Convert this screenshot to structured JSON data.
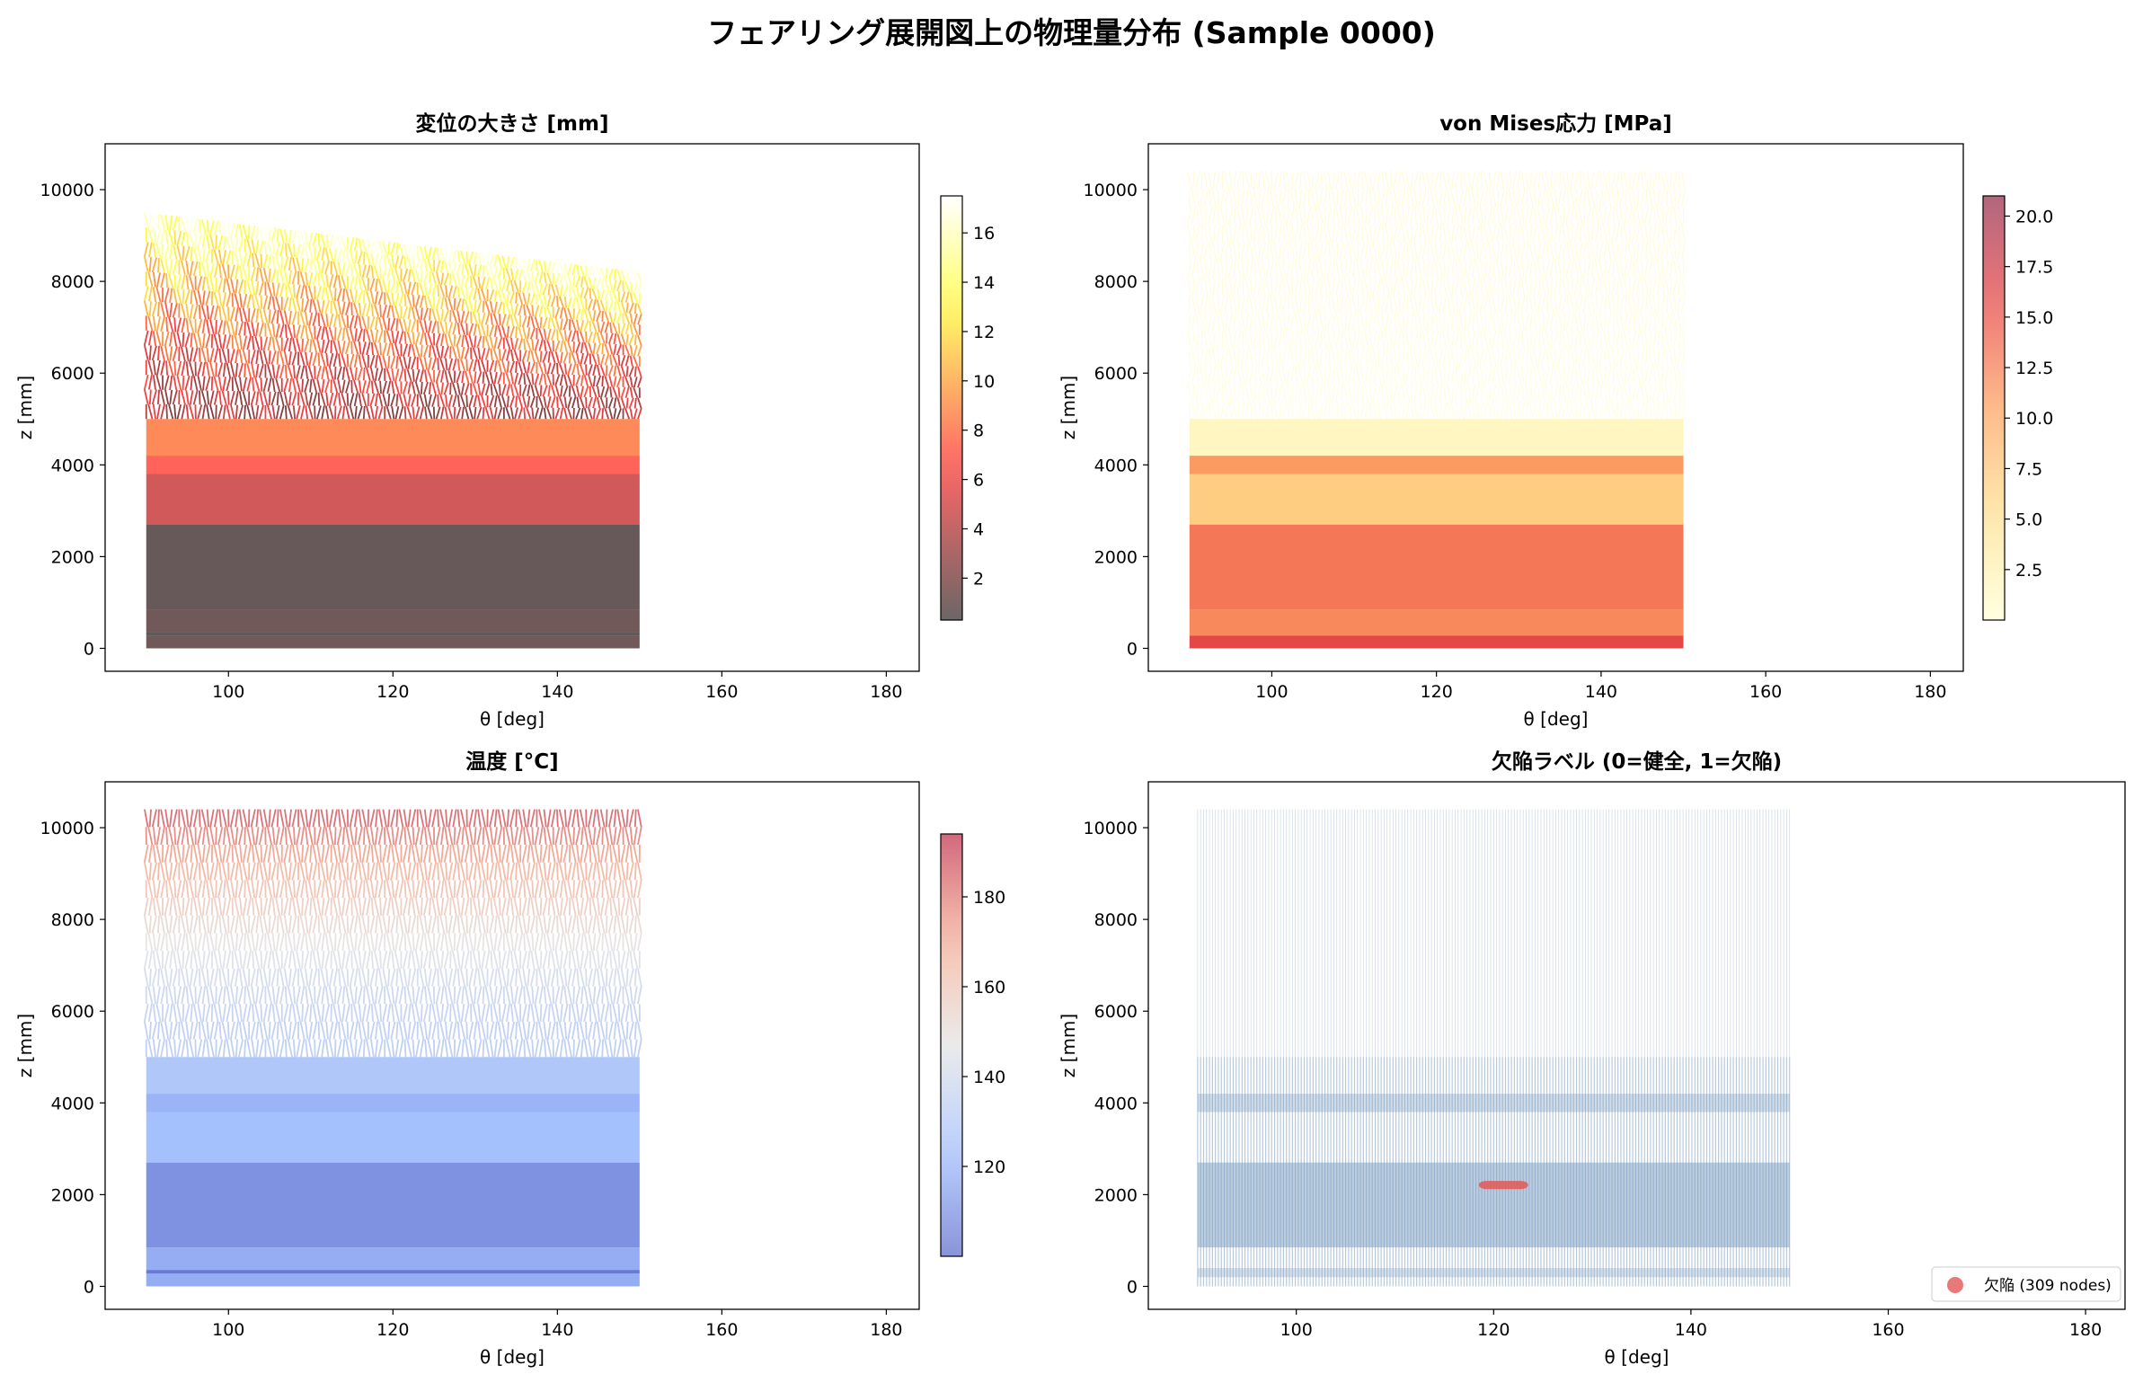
{
  "suptitle": "フェアリング展開図上の物理量分布 (Sample 0000)",
  "chart_data": [
    {
      "type": "scatter",
      "title": "変位の大きさ [mm]",
      "xlabel": "θ [deg]",
      "ylabel": "z [mm]",
      "xlim": [
        85,
        184
      ],
      "ylim": [
        -500,
        11000
      ],
      "xticks": [
        100,
        120,
        140,
        160,
        180
      ],
      "yticks": [
        0,
        2000,
        4000,
        6000,
        8000,
        10000
      ],
      "theta_range": [
        90,
        150
      ],
      "colormap": "hot",
      "colorbar": {
        "ticks": [
          "2",
          "4",
          "6",
          "8",
          "10",
          "12",
          "14",
          "16"
        ],
        "range": [
          0.3,
          17.5
        ]
      },
      "bands": [
        {
          "z": [
            0,
            280
          ],
          "value": 1.0
        },
        {
          "z": [
            280,
            360
          ],
          "value": 0.2
        },
        {
          "z": [
            360,
            850
          ],
          "value": 1.0
        },
        {
          "z": [
            850,
            2700
          ],
          "value": 0.6
        },
        {
          "z": [
            2700,
            3800
          ],
          "value": 4.8
        },
        {
          "z": [
            3800,
            4200
          ],
          "value": 7.0
        },
        {
          "z": [
            4200,
            5000
          ],
          "value": 8.5
        }
      ],
      "upper_region": {
        "z": [
          5000,
          9500
        ],
        "value_low": 4,
        "value_high": 16
      }
    },
    {
      "type": "scatter",
      "title": "von Mises応力 [MPa]",
      "xlabel": "θ [deg]",
      "ylabel": "z [mm]",
      "xlim": [
        85,
        184
      ],
      "ylim": [
        -500,
        11000
      ],
      "xticks": [
        100,
        120,
        140,
        160,
        180
      ],
      "yticks": [
        0,
        2000,
        4000,
        6000,
        8000,
        10000
      ],
      "theta_range": [
        90,
        150
      ],
      "colormap": "YlOrRd",
      "colorbar": {
        "ticks": [
          "2.5",
          "5.0",
          "7.5",
          "10.0",
          "12.5",
          "15.0",
          "17.5",
          "20.0"
        ],
        "range": [
          0,
          21
        ]
      },
      "bands": [
        {
          "z": [
            0,
            280
          ],
          "value": 16
        },
        {
          "z": [
            280,
            850
          ],
          "value": 12
        },
        {
          "z": [
            850,
            2700
          ],
          "value": 13
        },
        {
          "z": [
            2700,
            3800
          ],
          "value": 7
        },
        {
          "z": [
            3800,
            4200
          ],
          "value": 11
        },
        {
          "z": [
            4200,
            5000
          ],
          "value": 1.5
        }
      ],
      "upper_region": {
        "z": [
          5000,
          10400
        ],
        "value_low": 0.3,
        "value_high": 1.2
      }
    },
    {
      "type": "scatter",
      "title": "温度 [°C]",
      "xlabel": "θ [deg]",
      "ylabel": "z [mm]",
      "xlim": [
        85,
        184
      ],
      "ylim": [
        -500,
        11000
      ],
      "xticks": [
        100,
        120,
        140,
        160,
        180
      ],
      "yticks": [
        0,
        2000,
        4000,
        6000,
        8000,
        10000
      ],
      "theta_range": [
        90,
        150
      ],
      "colormap": "coolwarm",
      "colorbar": {
        "ticks": [
          "120",
          "140",
          "160",
          "180"
        ],
        "range": [
          100,
          194
        ]
      },
      "bands": [
        {
          "z": [
            0,
            280
          ],
          "value": 118
        },
        {
          "z": [
            280,
            360
          ],
          "value": 103
        },
        {
          "z": [
            360,
            850
          ],
          "value": 118
        },
        {
          "z": [
            850,
            2700
          ],
          "value": 110
        },
        {
          "z": [
            2700,
            3800
          ],
          "value": 124
        },
        {
          "z": [
            3800,
            4200
          ],
          "value": 120
        },
        {
          "z": [
            4200,
            5000
          ],
          "value": 128
        }
      ],
      "upper_region": {
        "z": [
          5000,
          10400
        ],
        "value_low": 132,
        "value_high": 190
      }
    },
    {
      "type": "scatter",
      "title": "欠陥ラベル (0=健全, 1=欠陥)",
      "xlabel": "θ [deg]",
      "ylabel": "z [mm]",
      "xlim": [
        85,
        184
      ],
      "ylim": [
        -500,
        11000
      ],
      "xticks": [
        100,
        120,
        140,
        160,
        180
      ],
      "yticks": [
        0,
        2000,
        4000,
        6000,
        8000,
        10000
      ],
      "theta_range": [
        90,
        150
      ],
      "healthy_color": "#7a9cc0",
      "defect_color": "#e45756",
      "defect_region": {
        "theta": [
          118.5,
          123.5
        ],
        "z": [
          2120,
          2300
        ]
      },
      "legend": {
        "label": "欠陥 (309 nodes)",
        "placement": "lower right"
      }
    }
  ]
}
